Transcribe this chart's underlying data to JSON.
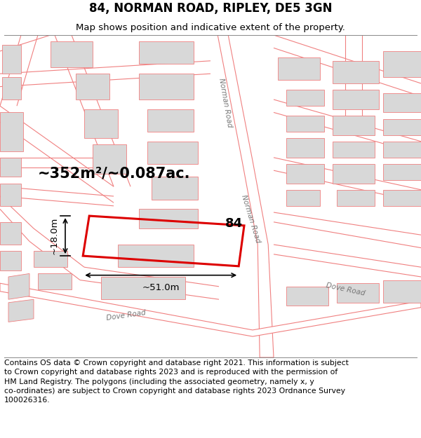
{
  "title": "84, NORMAN ROAD, RIPLEY, DE5 3GN",
  "subtitle": "Map shows position and indicative extent of the property.",
  "footer": "Contains OS data © Crown copyright and database right 2021. This information is subject\nto Crown copyright and database rights 2023 and is reproduced with the permission of\nHM Land Registry. The polygons (including the associated geometry, namely x, y\nco-ordinates) are subject to Crown copyright and database rights 2023 Ordnance Survey\n100026316.",
  "road_color": "#f08080",
  "road_fill": "#ffffff",
  "building_fill": "#d8d8d8",
  "building_edge": "#f08080",
  "plot_color": "#dd0000",
  "plot_label": "84",
  "area_text": "~352m²/~0.087ac.",
  "dim_width": "~51.0m",
  "dim_height": "~18.0m",
  "title_fontsize": 12,
  "subtitle_fontsize": 9.5,
  "footer_fontsize": 7.8,
  "norman_road_label": "Norman Road",
  "dove_road_label": "Dove Road"
}
